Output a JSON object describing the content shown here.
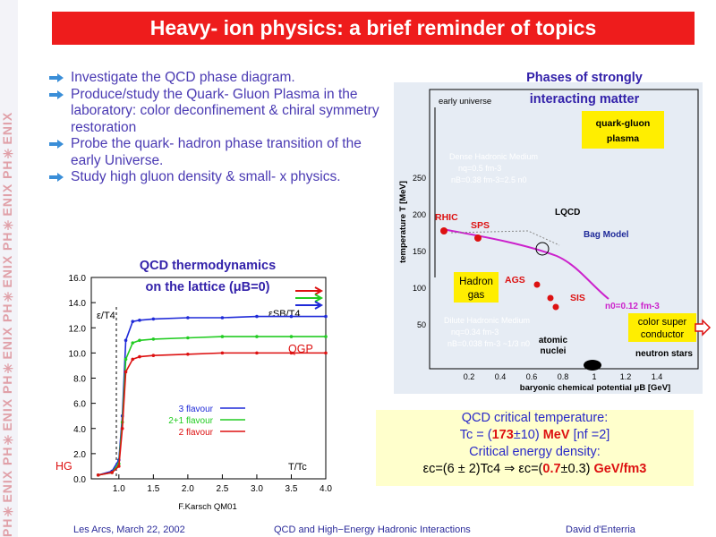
{
  "sidebar": {
    "logo_text": "PH✳ENIX PH✳ENIX PH✳ENIX PH✳ENIX PH✳ENIX PH✳ENIX"
  },
  "title": "Heavy- ion physics: a brief reminder of topics",
  "bullets": [
    "Investigate the QCD phase diagram.",
    "Produce/study the Quark- Gluon Plasma in the laboratory: color deconfinement & chiral symmetry restoration",
    "Probe the quark- hadron phase transition of the early Universe.",
    "Study high gluon density & small- x physics."
  ],
  "lattice": {
    "title1": "QCD thermodynamics",
    "title2": "on the lattice (μB=0)",
    "y_ticks": [
      "16.0",
      "14.0",
      "12.0",
      "10.0",
      "8.0",
      "6.0",
      "4.0",
      "2.0",
      "0.0"
    ],
    "x_ticks": [
      "1.0",
      "1.5",
      "2.0",
      "2.5",
      "3.0",
      "3.5",
      "4.0"
    ],
    "eps_sb": "εSB/T4",
    "eps_label": "ε/T4",
    "qgp": "QGP",
    "hg": "HG",
    "xlabel": "T/Tc",
    "source": "F.Karsch QM01",
    "legend": [
      "3 flavour",
      "2+1 flavour",
      "2 flavour"
    ],
    "colors": {
      "3": "#1f2ad8",
      "21": "#22cc22",
      "2": "#dd1111"
    }
  },
  "chart_data": {
    "type": "line",
    "title": "QCD thermodynamics on the lattice (μB=0)",
    "xlabel": "T/Tc",
    "ylabel": "ε/T4",
    "xlim": [
      0.6,
      4.0
    ],
    "ylim": [
      0,
      16
    ],
    "series": [
      {
        "name": "3 flavour",
        "x": [
          0.7,
          0.9,
          1.0,
          1.05,
          1.1,
          1.2,
          1.3,
          1.5,
          2.0,
          2.5,
          3.0,
          3.5,
          4.0
        ],
        "values": [
          0.3,
          0.6,
          1.5,
          5.0,
          11.0,
          12.5,
          12.6,
          12.7,
          12.8,
          12.8,
          12.9,
          12.9,
          12.9
        ]
      },
      {
        "name": "2+1 flavour",
        "x": [
          0.7,
          0.9,
          1.0,
          1.05,
          1.1,
          1.2,
          1.3,
          1.5,
          2.0,
          2.5,
          3.0,
          3.5,
          4.0
        ],
        "values": [
          0.3,
          0.5,
          1.2,
          4.5,
          9.5,
          10.8,
          11.0,
          11.1,
          11.2,
          11.3,
          11.3,
          11.3,
          11.3
        ]
      },
      {
        "name": "2 flavour",
        "x": [
          0.7,
          0.9,
          1.0,
          1.05,
          1.1,
          1.2,
          1.3,
          1.5,
          2.0,
          2.5,
          3.0,
          3.5,
          4.0
        ],
        "values": [
          0.3,
          0.5,
          1.0,
          4.0,
          8.5,
          9.5,
          9.7,
          9.8,
          9.9,
          10.0,
          10.0,
          10.0,
          10.0
        ]
      }
    ]
  },
  "phase": {
    "title1": "Phases of strongly",
    "title2": "interacting matter",
    "early_universe": "early universe",
    "qgp_box1": "quark-gluon",
    "qgp_box2": "plasma",
    "dense1": "Dense Hadronic Medium",
    "dense2": "nq=0.5 fm-3",
    "dense3": "nB=0.38 fm-3=2.5 n0",
    "lqcd": "LQCD",
    "bag": "Bag Model",
    "rhic": "RHIC",
    "sps": "SPS",
    "ags": "AGS",
    "sis": "SIS",
    "hadron_gas1": "Hadron",
    "hadron_gas2": "gas",
    "dilute1": "Dilute Hadronic Medium",
    "dilute2": "nq=0.34 fm-3",
    "dilute3": "nB=0.038 fm-3 ~1/3 n0",
    "n0": "n0=0.12 fm-3",
    "color_super1": "color super",
    "color_super2": "conductor",
    "atomic1": "atomic",
    "atomic2": "nuclei",
    "neutron": "neutron stars",
    "ylabel": "temperature T [MeV]",
    "xlabel": "baryonic chemical potential μB [GeV]",
    "y_ticks": [
      "250",
      "200",
      "150",
      "100",
      "50"
    ],
    "x_ticks": [
      "0.2",
      "0.4",
      "0.6",
      "0.8",
      "1",
      "1.2",
      "1.4"
    ]
  },
  "crit": {
    "line1": "QCD critical temperature:",
    "line2a": "Tc = (",
    "line2b": "173",
    "line2c": "±10) ",
    "line2d": "MeV",
    "line2e": " [nf =2]",
    "line3": "Critical energy density:",
    "line4a": "εc=(6 ± 2)Tc4  ⇒ εc=(",
    "line4b": "0.7",
    "line4c": "±0.3) ",
    "line4d": "GeV/fm3"
  },
  "footer": {
    "left": "Les Arcs, March 22, 2002",
    "center": "QCD and High−Energy Hadronic Interactions",
    "right": "David d'Enterria"
  }
}
